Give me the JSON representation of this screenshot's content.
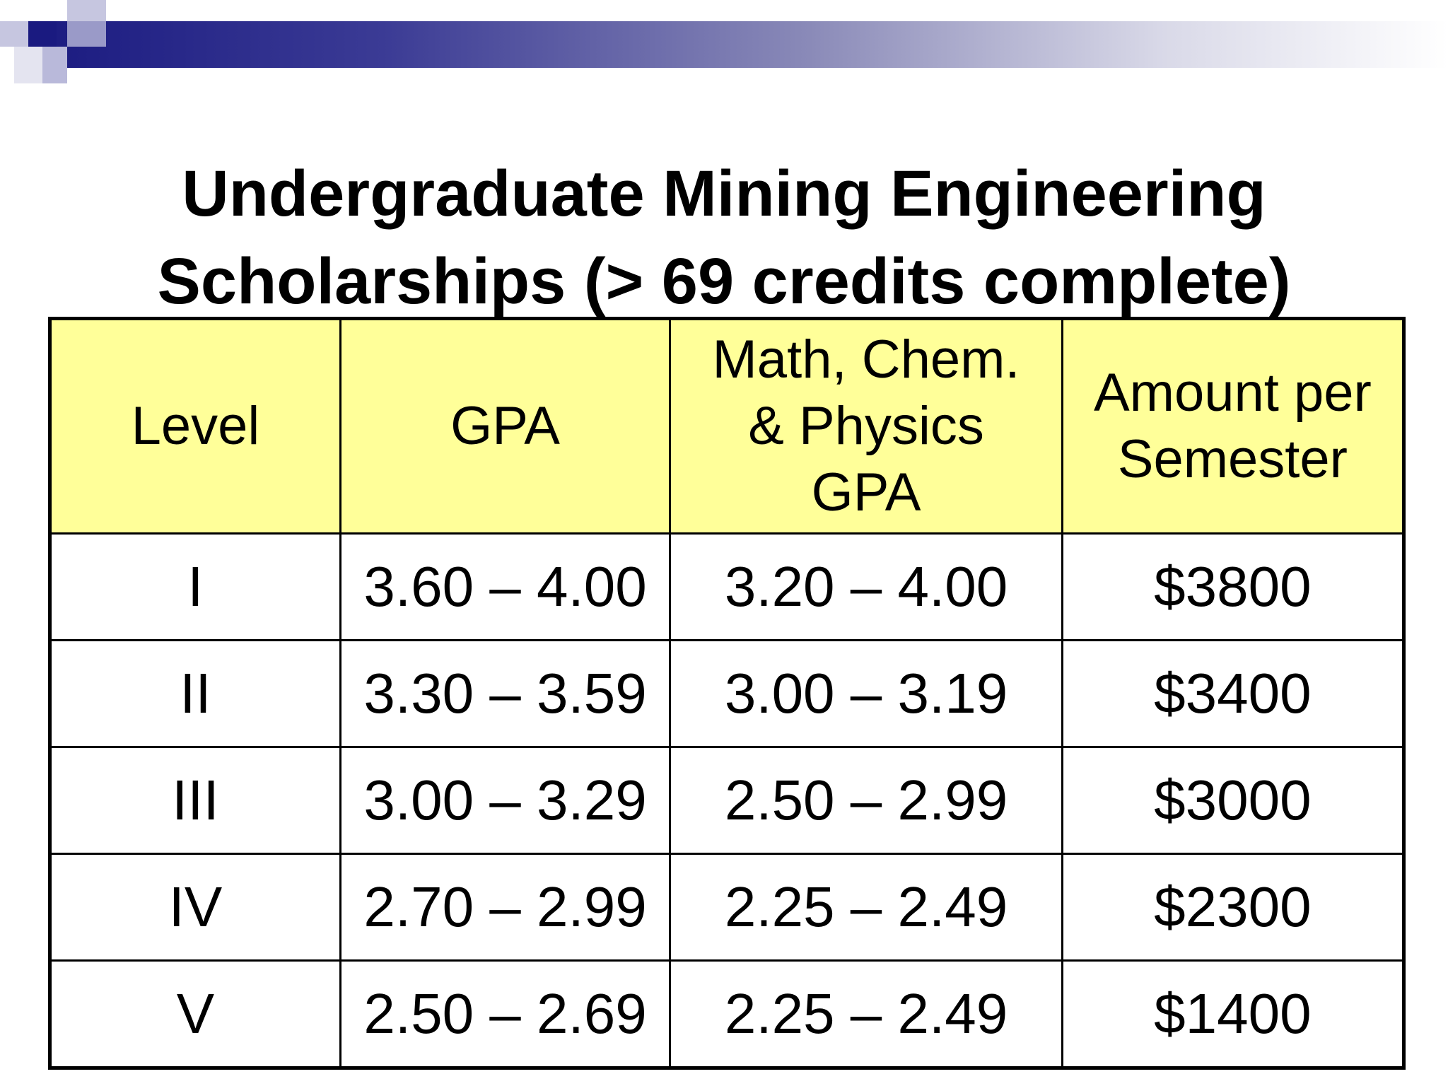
{
  "title": {
    "line1": "Undergraduate Mining Engineering",
    "line2": "Scholarships (> 69 credits complete)"
  },
  "table": {
    "headers": [
      {
        "lines": [
          "Level"
        ]
      },
      {
        "lines": [
          "GPA"
        ]
      },
      {
        "lines": [
          "Math, Chem.",
          "& Physics",
          "GPA"
        ]
      },
      {
        "lines": [
          "Amount per",
          "Semester"
        ]
      }
    ],
    "rows": [
      [
        "I",
        "3.60 – 4.00",
        "3.20 – 4.00",
        "$3800"
      ],
      [
        "II",
        "3.30 – 3.59",
        "3.00 – 3.19",
        "$3400"
      ],
      [
        "III",
        "3.00 – 3.29",
        "2.50 – 2.99",
        "$3000"
      ],
      [
        "IV",
        "2.70 – 2.99",
        "2.25 – 2.49",
        "$2300"
      ],
      [
        "V",
        "2.50 – 2.69",
        "2.25 – 2.49",
        "$1400"
      ]
    ]
  },
  "colors": {
    "header_bg": "#ffff99",
    "band_dark": "#1a1a80"
  }
}
